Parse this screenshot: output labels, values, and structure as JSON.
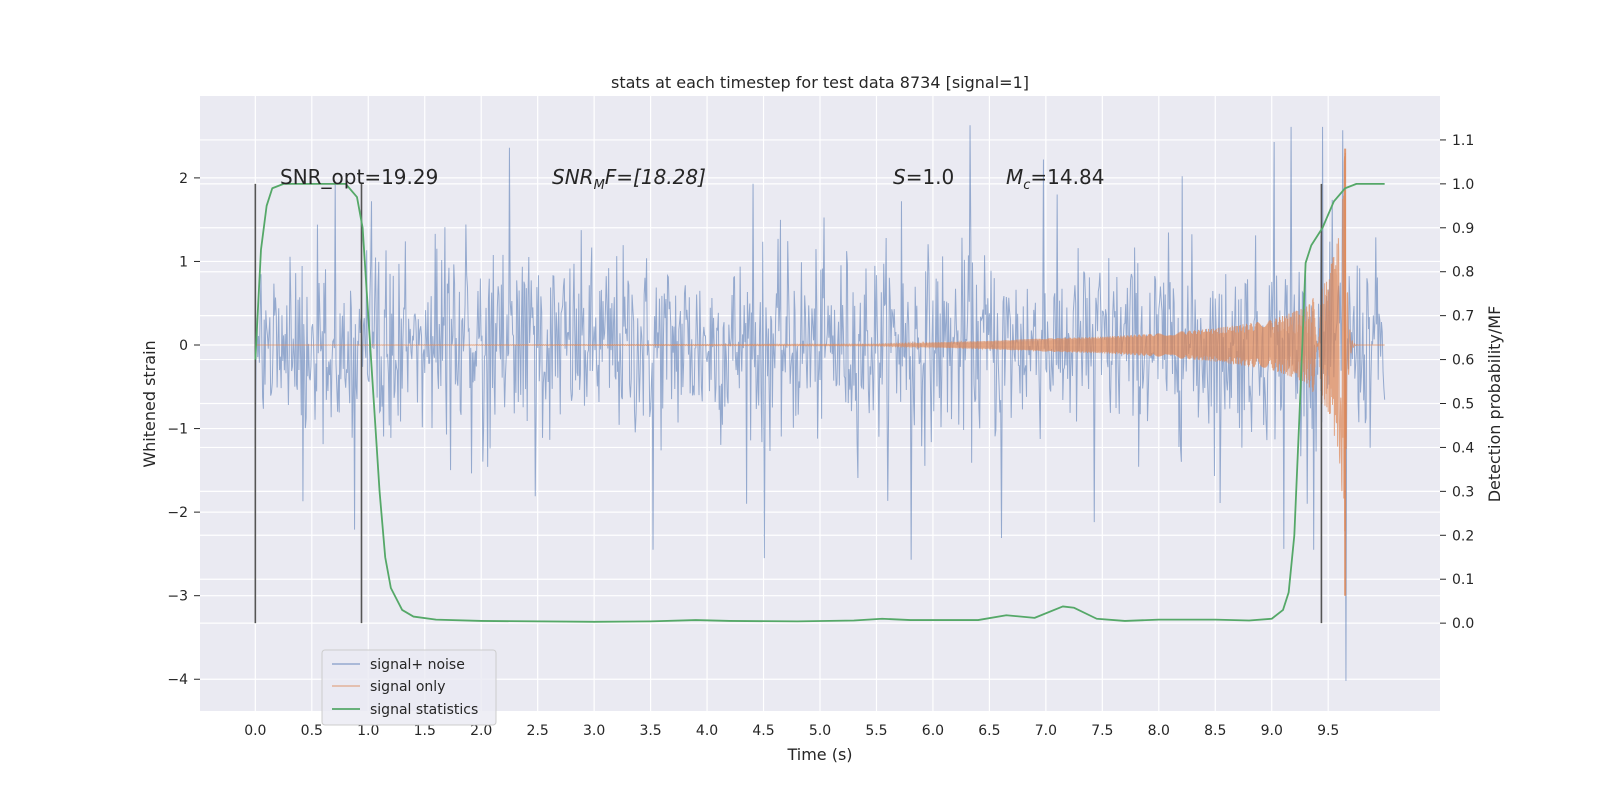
{
  "chart_data": {
    "type": "line",
    "title": "stats at each timestep for test data 8734 [signal=1]",
    "xlabel": "Time (s)",
    "ylabel_left": "Whitened strain",
    "ylabel_right": "Detection probability/MF",
    "xlim": [
      -0.49,
      10.49
    ],
    "ylim_left": [
      -4.38,
      2.98
    ],
    "ylim_right": [
      -0.2,
      1.2
    ],
    "x_ticks": [
      "0.0",
      "0.5",
      "1.0",
      "1.5",
      "2.0",
      "2.5",
      "3.0",
      "3.5",
      "4.0",
      "4.5",
      "5.0",
      "5.5",
      "6.0",
      "6.5",
      "7.0",
      "7.5",
      "8.0",
      "8.5",
      "9.0",
      "9.5"
    ],
    "y_ticks_left": [
      "−4",
      "−3",
      "−2",
      "−1",
      "0",
      "1",
      "2"
    ],
    "y_ticks_right": [
      "0.0",
      "0.1",
      "0.2",
      "0.3",
      "0.4",
      "0.5",
      "0.6",
      "0.7",
      "0.8",
      "0.9",
      "1.0",
      "1.1"
    ],
    "grid": true,
    "legend_position": "bottom-left",
    "annotations": {
      "snr_opt": "SNR_opt=19.29",
      "snr_mf_pre": "SNR",
      "snr_mf_sub": "M",
      "snr_mf_post": "F=[18.28]",
      "s_pre": "S",
      "s_post": "=1.0",
      "mc_pre": "M",
      "mc_sub": "c",
      "mc_post": "=14.84"
    },
    "vertical_markers": [
      0.0,
      0.94,
      9.44
    ],
    "series": [
      {
        "name": "signal+ noise",
        "axis": "left",
        "color": "#4c72b0",
        "x_range": [
          0.0,
          10.0
        ],
        "envelope_typical": [
          -1.1,
          1.1
        ],
        "peaks": [
          [
            0.42,
            -1.87
          ],
          [
            0.55,
            1.44
          ],
          [
            0.71,
            1.96
          ],
          [
            0.88,
            -2.21
          ],
          [
            1.03,
            1.72
          ],
          [
            2.25,
            2.36
          ],
          [
            2.48,
            -1.81
          ],
          [
            3.52,
            -2.45
          ],
          [
            4.41,
            1.93
          ],
          [
            4.51,
            -2.55
          ],
          [
            5.72,
            1.72
          ],
          [
            5.81,
            -2.57
          ],
          [
            6.33,
            2.63
          ],
          [
            6.61,
            -2.31
          ],
          [
            6.98,
            2.22
          ],
          [
            7.43,
            -2.12
          ],
          [
            8.21,
            2.02
          ],
          [
            8.54,
            -1.89
          ],
          [
            9.02,
            2.43
          ],
          [
            9.11,
            -2.44
          ],
          [
            9.17,
            2.61
          ],
          [
            9.37,
            -2.45
          ],
          [
            9.45,
            2.61
          ],
          [
            9.63,
            2.57
          ],
          [
            9.66,
            -4.02
          ]
        ]
      },
      {
        "name": "signal only",
        "axis": "left",
        "color": "#dd8452",
        "x_range": [
          0.0,
          10.0
        ],
        "chirp_amplitude": [
          [
            0.0,
            0.0
          ],
          [
            5.5,
            0.01
          ],
          [
            6.0,
            0.03
          ],
          [
            6.5,
            0.05
          ],
          [
            7.0,
            0.08
          ],
          [
            7.5,
            0.1
          ],
          [
            8.0,
            0.14
          ],
          [
            8.5,
            0.2
          ],
          [
            9.0,
            0.3
          ],
          [
            9.3,
            0.45
          ],
          [
            9.5,
            0.8
          ],
          [
            9.6,
            1.4
          ],
          [
            9.65,
            2.35
          ]
        ],
        "merger_time": 9.65
      },
      {
        "name": "signal statistics",
        "axis": "right",
        "color": "#55a868",
        "points": [
          [
            0.0,
            0.6
          ],
          [
            0.05,
            0.85
          ],
          [
            0.1,
            0.95
          ],
          [
            0.15,
            0.99
          ],
          [
            0.25,
            1.0
          ],
          [
            0.5,
            1.0
          ],
          [
            0.8,
            1.0
          ],
          [
            0.9,
            0.97
          ],
          [
            0.95,
            0.9
          ],
          [
            1.0,
            0.7
          ],
          [
            1.05,
            0.5
          ],
          [
            1.1,
            0.3
          ],
          [
            1.15,
            0.15
          ],
          [
            1.2,
            0.08
          ],
          [
            1.3,
            0.03
          ],
          [
            1.4,
            0.015
          ],
          [
            1.6,
            0.008
          ],
          [
            2.0,
            0.005
          ],
          [
            3.0,
            0.003
          ],
          [
            3.5,
            0.004
          ],
          [
            3.9,
            0.007
          ],
          [
            4.2,
            0.005
          ],
          [
            4.8,
            0.004
          ],
          [
            5.3,
            0.006
          ],
          [
            5.55,
            0.01
          ],
          [
            5.8,
            0.007
          ],
          [
            6.4,
            0.007
          ],
          [
            6.65,
            0.018
          ],
          [
            6.9,
            0.012
          ],
          [
            7.15,
            0.038
          ],
          [
            7.25,
            0.035
          ],
          [
            7.45,
            0.01
          ],
          [
            7.7,
            0.005
          ],
          [
            8.0,
            0.008
          ],
          [
            8.5,
            0.008
          ],
          [
            8.8,
            0.006
          ],
          [
            9.0,
            0.01
          ],
          [
            9.1,
            0.03
          ],
          [
            9.15,
            0.07
          ],
          [
            9.2,
            0.2
          ],
          [
            9.25,
            0.5
          ],
          [
            9.3,
            0.82
          ],
          [
            9.35,
            0.86
          ],
          [
            9.45,
            0.9
          ],
          [
            9.55,
            0.96
          ],
          [
            9.65,
            0.99
          ],
          [
            9.75,
            1.0
          ],
          [
            10.0,
            1.0
          ]
        ]
      }
    ]
  }
}
